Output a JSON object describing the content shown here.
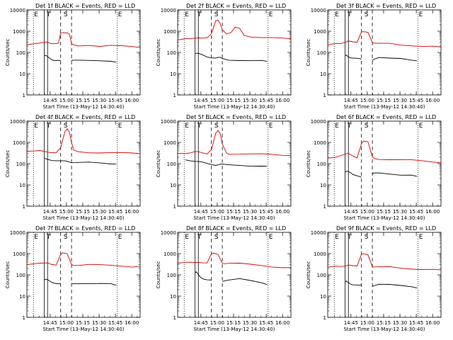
{
  "colors": {
    "background": "#ffffff",
    "events": "#000000",
    "lld": "#d40000",
    "axis": "#000000"
  },
  "common": {
    "ylabel": "Counts/sec",
    "xlabel": "Start Time (13-May-12 14:30:40)",
    "ytick_labels": [
      "1",
      "10",
      "100",
      "1000",
      "10000"
    ],
    "xtick_labels": [
      "14:45",
      "15:00",
      "15:15",
      "15:30",
      "15:45",
      "16:00"
    ],
    "xtick_minutes": [
      14.33,
      29.33,
      44.33,
      59.33,
      74.33,
      89.33
    ],
    "xlim_minutes": [
      -7,
      97
    ],
    "ylim": [
      1,
      10000
    ],
    "yscale": "log",
    "marker_labels": [
      "E",
      "T",
      "S",
      "E"
    ],
    "title_suffix": "BLACK = Events, RED = LLD"
  },
  "chart_data": [
    {
      "type": "line",
      "title": "Det 1f",
      "markers_minutes": {
        "E_start": -1,
        "T_line1": 9,
        "T_line2": 12,
        "S_dash1": 24,
        "S_dash2": 34,
        "E_end": 76
      },
      "series": [
        {
          "name": "Events",
          "x": [
            9,
            10,
            12,
            14,
            16,
            18,
            20,
            22,
            24,
            26,
            28,
            30,
            32,
            34,
            35,
            40,
            50,
            60,
            70,
            75
          ],
          "y": [
            65,
            70,
            60,
            52,
            48,
            45,
            42,
            40,
            38,
            0,
            0,
            0,
            0,
            38,
            40,
            42,
            44,
            44,
            40,
            35
          ]
        },
        {
          "name": "LLD",
          "x": [
            -7,
            0,
            5,
            9,
            12,
            15,
            18,
            20,
            22,
            24,
            26,
            28,
            30,
            32,
            34,
            36,
            40,
            50,
            60,
            70,
            80,
            90,
            97
          ],
          "y": [
            230,
            240,
            260,
            300,
            330,
            280,
            260,
            250,
            250,
            800,
            900,
            900,
            850,
            700,
            240,
            220,
            210,
            230,
            200,
            210,
            190,
            180,
            170
          ]
        }
      ]
    },
    {
      "type": "line",
      "title": "Det 2f",
      "markers_minutes": {
        "E_start": -1,
        "T_line1": 9,
        "T_line2": 12,
        "S_dash1": 24,
        "S_dash2": 34,
        "E_end": 76
      },
      "series": [
        {
          "name": "Events",
          "x": [
            9,
            12,
            16,
            20,
            24,
            28,
            30,
            32,
            34,
            40,
            50,
            60,
            70,
            75
          ],
          "y": [
            90,
            85,
            75,
            65,
            60,
            55,
            55,
            55,
            50,
            45,
            45,
            42,
            40,
            38
          ]
        },
        {
          "name": "LLD",
          "x": [
            -7,
            0,
            5,
            9,
            12,
            16,
            20,
            24,
            28,
            30,
            32,
            34,
            38,
            42,
            46,
            50,
            54,
            60,
            70,
            80,
            90,
            97
          ],
          "y": [
            380,
            420,
            450,
            500,
            520,
            480,
            460,
            700,
            3000,
            3500,
            2500,
            1200,
            700,
            800,
            1500,
            1400,
            700,
            550,
            480,
            460,
            450,
            440
          ]
        }
      ]
    },
    {
      "type": "line",
      "title": "Det 3f",
      "markers_minutes": {
        "E_start": -1,
        "T_line1": 9,
        "T_line2": 12,
        "S_dash1": 24,
        "S_dash2": 34,
        "E_end": 76
      },
      "series": [
        {
          "name": "Events",
          "x": [
            9,
            10,
            12,
            14,
            16,
            20,
            24,
            26,
            30,
            34,
            35,
            40,
            50,
            60,
            70,
            75
          ],
          "y": [
            70,
            75,
            65,
            60,
            55,
            50,
            45,
            0,
            0,
            45,
            48,
            55,
            50,
            50,
            45,
            40
          ]
        },
        {
          "name": "LLD",
          "x": [
            -7,
            0,
            5,
            9,
            12,
            16,
            20,
            24,
            26,
            30,
            34,
            36,
            40,
            50,
            60,
            70,
            80,
            90,
            97
          ],
          "y": [
            230,
            260,
            280,
            320,
            350,
            300,
            280,
            900,
            1000,
            950,
            300,
            260,
            250,
            260,
            230,
            220,
            200,
            190,
            180
          ]
        }
      ]
    },
    {
      "type": "line",
      "title": "Det 4f",
      "markers_minutes": {
        "E_start": -1,
        "T_line1": 9,
        "T_line2": 12,
        "S_dash1": 24,
        "S_dash2": 34,
        "E_end": 76
      },
      "series": [
        {
          "name": "Events",
          "x": [
            9,
            12,
            16,
            20,
            24,
            28,
            30,
            32,
            34,
            38,
            42,
            50,
            60,
            70,
            75
          ],
          "y": [
            180,
            170,
            150,
            140,
            130,
            125,
            125,
            125,
            120,
            115,
            110,
            110,
            105,
            100,
            95
          ]
        },
        {
          "name": "LLD",
          "x": [
            -7,
            0,
            5,
            9,
            12,
            16,
            20,
            24,
            28,
            30,
            32,
            34,
            36,
            40,
            50,
            60,
            70,
            80,
            90,
            97
          ],
          "y": [
            380,
            420,
            450,
            380,
            330,
            300,
            320,
            600,
            3500,
            4500,
            3000,
            900,
            420,
            380,
            350,
            330,
            320,
            310,
            300,
            290
          ]
        }
      ]
    },
    {
      "type": "line",
      "title": "Det 5f",
      "markers_minutes": {
        "E_start": -1,
        "T_line1": 9,
        "T_line2": 12,
        "S_dash1": 24,
        "S_dash2": 34,
        "E_end": 76
      },
      "series": [
        {
          "name": "Events",
          "x": [
            0,
            5,
            9,
            12,
            16,
            20,
            24,
            28,
            30,
            32,
            34,
            40,
            50,
            60,
            70,
            75
          ],
          "y": [
            150,
            145,
            130,
            120,
            110,
            100,
            95,
            90,
            90,
            90,
            88,
            85,
            85,
            82,
            80,
            75
          ]
        },
        {
          "name": "LLD",
          "x": [
            -7,
            0,
            5,
            9,
            12,
            16,
            20,
            24,
            28,
            30,
            32,
            34,
            38,
            40,
            50,
            60,
            70,
            80,
            90,
            97
          ],
          "y": [
            300,
            320,
            330,
            350,
            340,
            310,
            300,
            500,
            2800,
            3500,
            2500,
            800,
            320,
            300,
            290,
            280,
            270,
            260,
            250,
            240
          ]
        }
      ]
    },
    {
      "type": "line",
      "title": "Det 6f",
      "markers_minutes": {
        "E_start": -1,
        "T_line1": 9,
        "T_line2": 12,
        "S_dash1": 24,
        "S_dash2": 34,
        "E_end": 76
      },
      "series": [
        {
          "name": "Events",
          "x": [
            9,
            10,
            12,
            14,
            16,
            20,
            24,
            26,
            30,
            34,
            35,
            40,
            50,
            60,
            70,
            75
          ],
          "y": [
            40,
            45,
            40,
            35,
            30,
            28,
            25,
            0,
            0,
            30,
            35,
            38,
            35,
            30,
            28,
            25
          ]
        },
        {
          "name": "LLD",
          "x": [
            -7,
            0,
            5,
            9,
            12,
            16,
            20,
            24,
            26,
            30,
            34,
            36,
            40,
            50,
            60,
            70,
            80,
            90,
            97
          ],
          "y": [
            180,
            200,
            230,
            260,
            300,
            240,
            200,
            900,
            1100,
            1000,
            200,
            180,
            170,
            160,
            150,
            140,
            130,
            120,
            110
          ]
        }
      ]
    },
    {
      "type": "line",
      "title": "Det 7f",
      "markers_minutes": {
        "E_start": -1,
        "T_line1": 9,
        "T_line2": 12,
        "S_dash1": 24,
        "S_dash2": 34,
        "E_end": 76
      },
      "series": [
        {
          "name": "Events",
          "x": [
            9,
            10,
            12,
            14,
            16,
            20,
            24,
            26,
            30,
            34,
            35,
            40,
            50,
            60,
            70,
            75
          ],
          "y": [
            55,
            60,
            55,
            50,
            45,
            42,
            40,
            0,
            0,
            38,
            40,
            42,
            40,
            38,
            36,
            32
          ]
        },
        {
          "name": "LLD",
          "x": [
            -7,
            0,
            5,
            9,
            12,
            16,
            20,
            24,
            26,
            30,
            34,
            36,
            40,
            50,
            60,
            70,
            80,
            90,
            97
          ],
          "y": [
            300,
            320,
            330,
            350,
            380,
            330,
            300,
            900,
            1000,
            950,
            320,
            300,
            290,
            300,
            280,
            270,
            260,
            250,
            250
          ]
        }
      ]
    },
    {
      "type": "line",
      "title": "Det 8f",
      "markers_minutes": {
        "E_start": -1,
        "T_line1": 9,
        "T_line2": 12,
        "S_dash1": 24,
        "S_dash2": 34,
        "E_end": 76
      },
      "series": [
        {
          "name": "Events",
          "x": [
            9,
            10,
            12,
            14,
            16,
            20,
            24,
            26,
            30,
            34,
            35,
            40,
            50,
            60,
            70,
            75
          ],
          "y": [
            120,
            130,
            100,
            80,
            70,
            60,
            55,
            0,
            0,
            50,
            55,
            60,
            65,
            50,
            40,
            35
          ]
        },
        {
          "name": "LLD",
          "x": [
            -7,
            0,
            5,
            9,
            12,
            16,
            20,
            24,
            26,
            30,
            34,
            36,
            40,
            50,
            60,
            70,
            80,
            90,
            97
          ],
          "y": [
            350,
            360,
            380,
            400,
            420,
            380,
            350,
            900,
            1000,
            950,
            380,
            350,
            340,
            330,
            300,
            280,
            250,
            230,
            220
          ]
        }
      ]
    },
    {
      "type": "line",
      "title": "Det 9f",
      "markers_minutes": {
        "E_start": -1,
        "T_line1": 9,
        "T_line2": 12,
        "S_dash1": 24,
        "S_dash2": 34,
        "E_end": 76
      },
      "series": [
        {
          "name": "Events",
          "x": [
            9,
            10,
            12,
            14,
            16,
            20,
            24,
            26,
            30,
            34,
            35,
            40,
            50,
            60,
            70,
            75
          ],
          "y": [
            45,
            50,
            45,
            40,
            35,
            32,
            30,
            0,
            0,
            30,
            32,
            35,
            33,
            30,
            28,
            24
          ]
        },
        {
          "name": "LLD",
          "x": [
            -7,
            0,
            5,
            9,
            12,
            16,
            20,
            24,
            26,
            30,
            34,
            36,
            40,
            50,
            60,
            70,
            80,
            90,
            97
          ],
          "y": [
            230,
            250,
            260,
            280,
            300,
            260,
            240,
            900,
            1000,
            950,
            250,
            230,
            220,
            230,
            210,
            200,
            190,
            180,
            170
          ]
        }
      ]
    }
  ]
}
